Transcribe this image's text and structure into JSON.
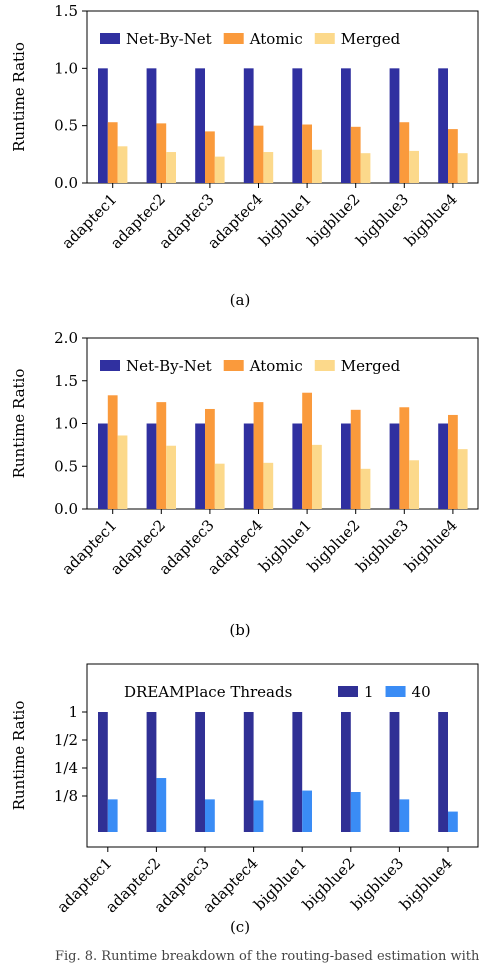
{
  "chart_data": [
    {
      "type": "bar",
      "ylabel": "Runtime Ratio",
      "ylim": [
        0,
        1.5
      ],
      "yticks": [
        "0.0",
        "0.5",
        "1.0",
        "1.5"
      ],
      "categories": [
        "adaptec1",
        "adaptec2",
        "adaptec3",
        "adaptec4",
        "bigblue1",
        "bigblue2",
        "bigblue3",
        "bigblue4"
      ],
      "legend_title": "",
      "legend_position": "top",
      "series": [
        {
          "name": "Net-By-Net",
          "color": "#3030a0",
          "values": [
            1.0,
            1.0,
            1.0,
            1.0,
            1.0,
            1.0,
            1.0,
            1.0
          ]
        },
        {
          "name": "Atomic",
          "color": "#fa9a3c",
          "values": [
            0.53,
            0.52,
            0.45,
            0.5,
            0.51,
            0.49,
            0.53,
            0.47
          ]
        },
        {
          "name": "Merged",
          "color": "#fcd98b",
          "values": [
            0.32,
            0.27,
            0.23,
            0.27,
            0.29,
            0.26,
            0.28,
            0.26
          ]
        }
      ],
      "caption": "(a)"
    },
    {
      "type": "bar",
      "ylabel": "Runtime Ratio",
      "ylim": [
        0,
        2.0
      ],
      "yticks": [
        "0.0",
        "0.5",
        "1.0",
        "1.5",
        "2.0"
      ],
      "categories": [
        "adaptec1",
        "adaptec2",
        "adaptec3",
        "adaptec4",
        "bigblue1",
        "bigblue2",
        "bigblue3",
        "bigblue4"
      ],
      "legend_title": "",
      "legend_position": "top",
      "series": [
        {
          "name": "Net-By-Net",
          "color": "#3030a0",
          "values": [
            1.0,
            1.0,
            1.0,
            1.0,
            1.0,
            1.0,
            1.0,
            1.0
          ]
        },
        {
          "name": "Atomic",
          "color": "#fa9a3c",
          "values": [
            1.33,
            1.25,
            1.17,
            1.25,
            1.36,
            1.16,
            1.19,
            1.1
          ]
        },
        {
          "name": "Merged",
          "color": "#fcd98b",
          "values": [
            0.86,
            0.74,
            0.53,
            0.54,
            0.75,
            0.47,
            0.57,
            0.7
          ]
        }
      ],
      "caption": "(b)"
    },
    {
      "type": "bar",
      "ylabel": "Runtime Ratio",
      "yscale": "log2",
      "ylim": [
        0.0625,
        2.4
      ],
      "yticks": [
        "1",
        "1/2",
        "1/4",
        "1/8"
      ],
      "ytick_values": [
        1,
        0.5,
        0.25,
        0.125
      ],
      "categories": [
        "adaptec1",
        "adaptec2",
        "adaptec3",
        "adaptec4",
        "bigblue1",
        "bigblue2",
        "bigblue3",
        "bigblue4"
      ],
      "legend_title": "DREAMPlace Threads",
      "legend_position": "top-right",
      "series": [
        {
          "name": "1",
          "color": "#303095",
          "values": [
            1,
            1,
            1,
            1,
            1,
            1,
            1,
            1
          ]
        },
        {
          "name": "40",
          "color": "#3a8cf5",
          "values": [
            0.115,
            0.195,
            0.115,
            0.112,
            0.143,
            0.138,
            0.115,
            0.085
          ]
        }
      ],
      "caption": "(c)"
    }
  ],
  "footer_fragment": "Fig. 8. Runtime breakdown of the routing-based estimation with"
}
